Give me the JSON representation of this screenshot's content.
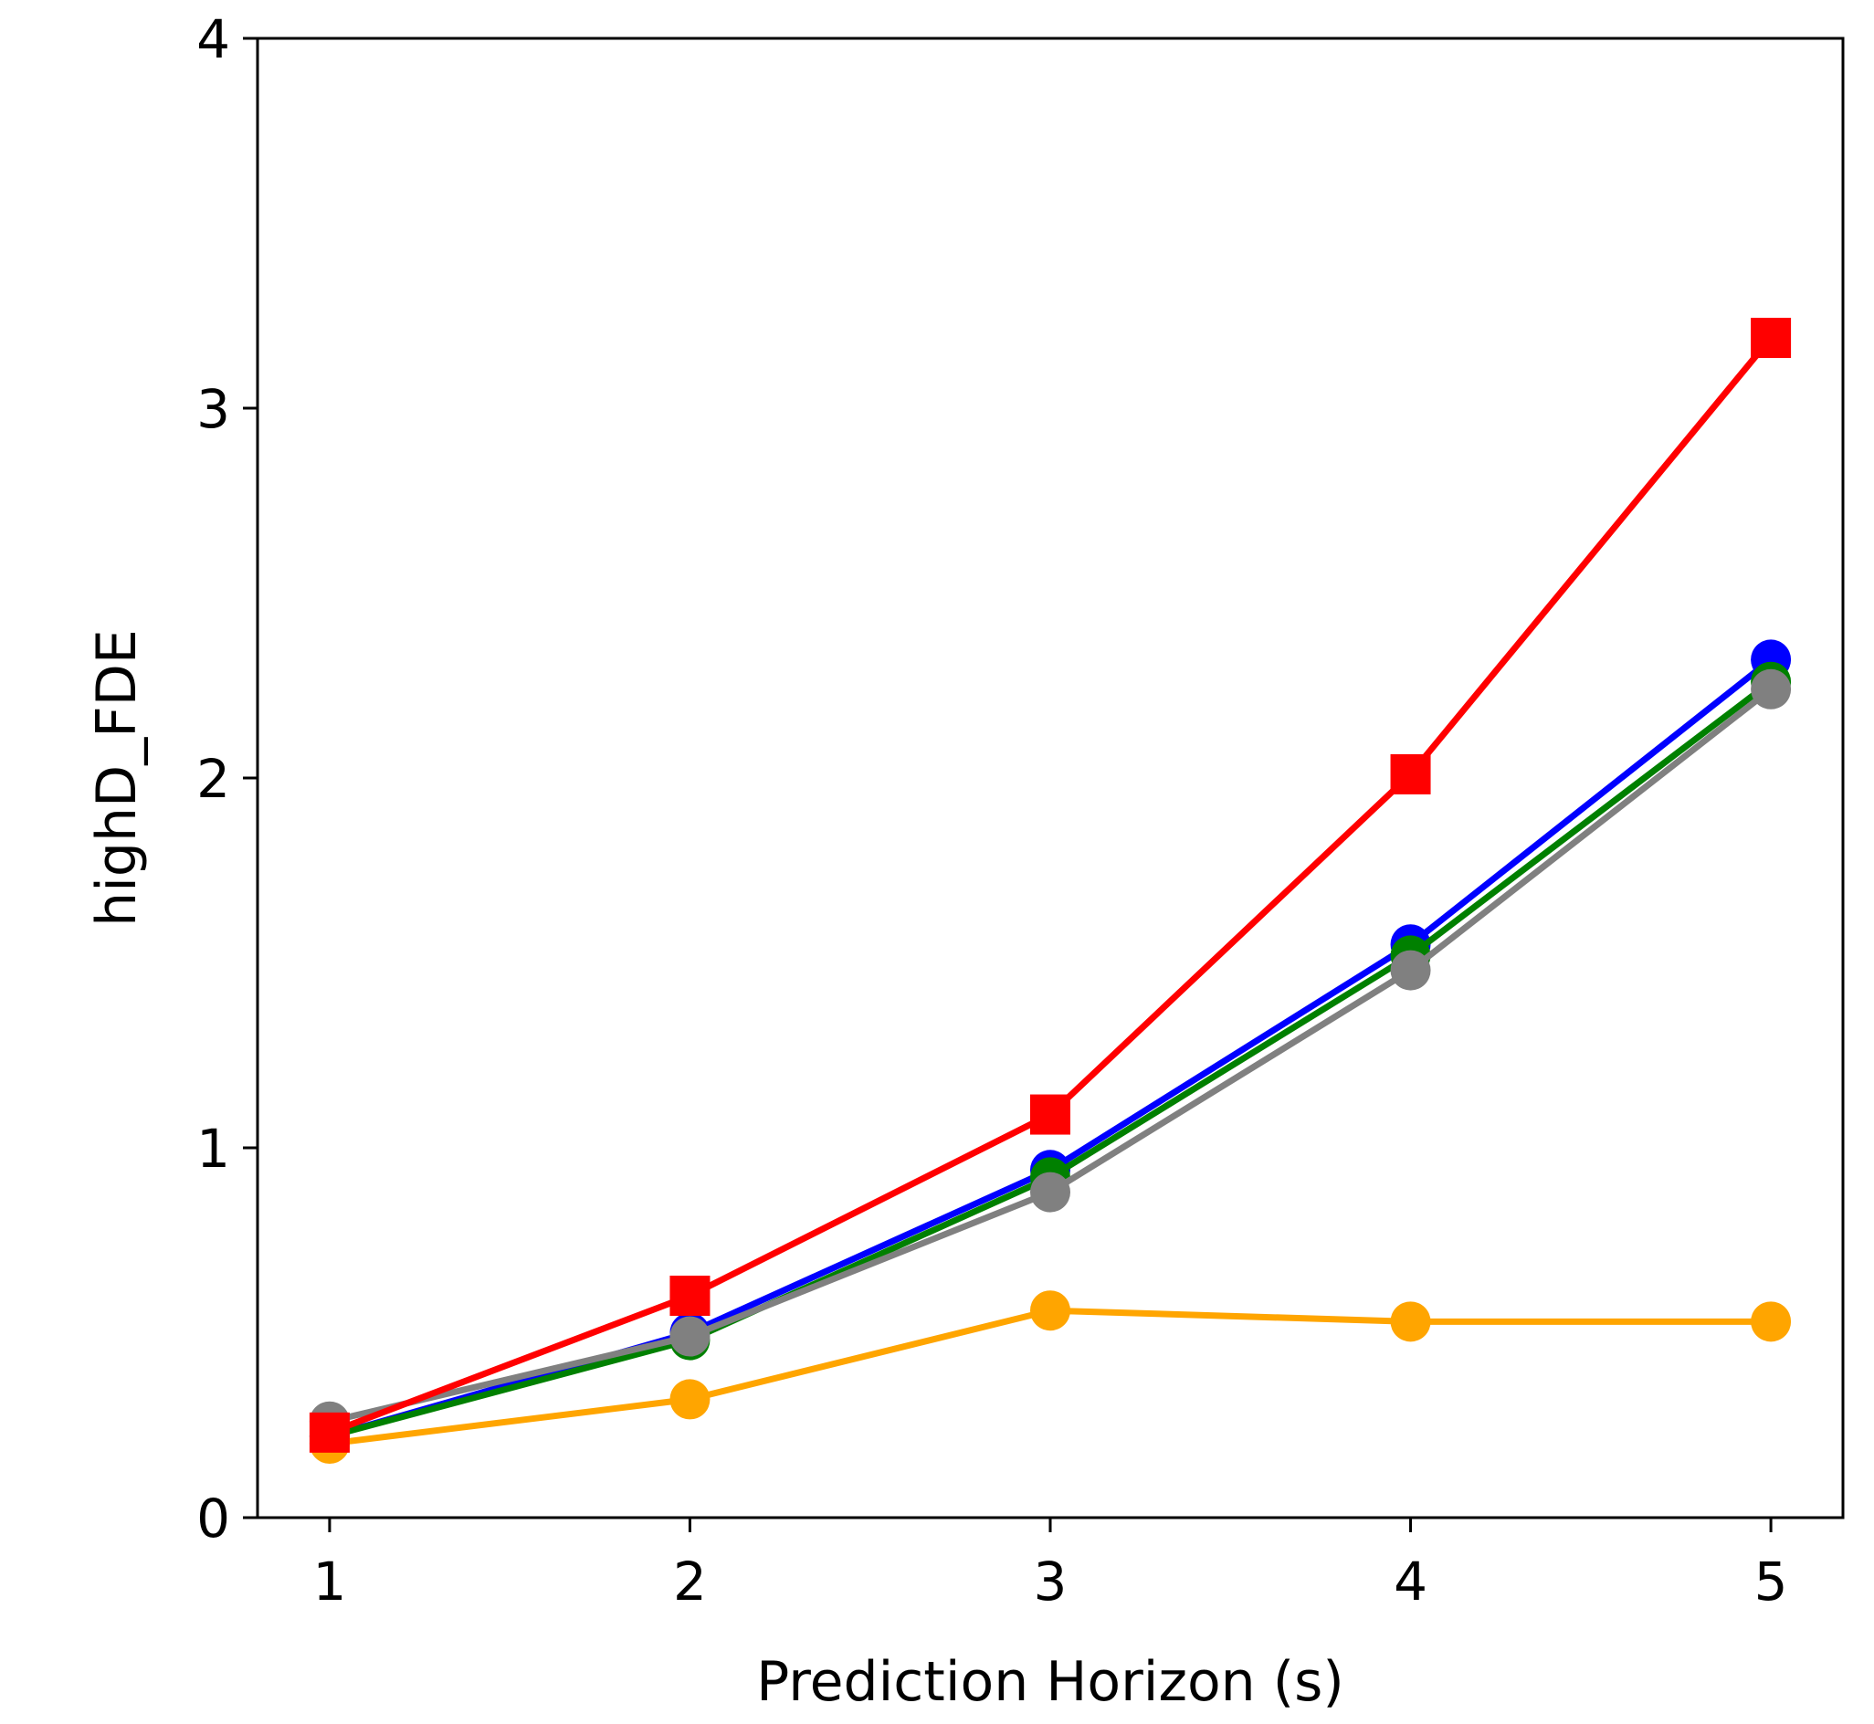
{
  "chart_data": {
    "type": "line",
    "title": "",
    "xlabel": "Prediction Horizon (s)",
    "ylabel": "highD_FDE",
    "x": [
      1,
      2,
      3,
      4,
      5
    ],
    "xlim": [
      0.8,
      5.2
    ],
    "ylim": [
      0,
      4
    ],
    "xticks": [
      1,
      2,
      3,
      4,
      5
    ],
    "yticks": [
      0,
      1,
      2,
      3,
      4
    ],
    "grid": false,
    "series": [
      {
        "name": "blue",
        "color": "#0000ff",
        "marker": "circle",
        "values": [
          0.22,
          0.5,
          0.94,
          1.55,
          2.32
        ]
      },
      {
        "name": "green",
        "color": "#008000",
        "marker": "circle",
        "values": [
          0.22,
          0.48,
          0.92,
          1.52,
          2.26
        ]
      },
      {
        "name": "gray",
        "color": "#808080",
        "marker": "circle",
        "values": [
          0.26,
          0.49,
          0.88,
          1.48,
          2.24
        ]
      },
      {
        "name": "orange",
        "color": "#ffa500",
        "marker": "circle",
        "values": [
          0.2,
          0.32,
          0.56,
          0.53,
          0.53
        ]
      },
      {
        "name": "red",
        "color": "#ff0000",
        "marker": "square",
        "values": [
          0.23,
          0.6,
          1.09,
          2.01,
          3.19
        ]
      }
    ]
  }
}
